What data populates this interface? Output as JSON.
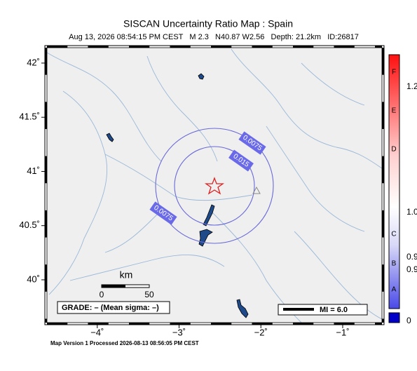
{
  "map": {
    "title": "SISCAN Uncertainty Ratio Map : Spain",
    "subtitle": "Aug 13, 2026 08:54:15 PM CEST   M 2.3   N40.87 W2.56   Depth: 21.2km   ID:26817",
    "xlim": [
      -4.615,
      -0.52
    ],
    "ylim": [
      39.605,
      42.142
    ],
    "xticks": [
      {
        "value": -4,
        "label": "−4˚"
      },
      {
        "value": -3,
        "label": "−3˚"
      },
      {
        "value": -2,
        "label": "−2˚"
      },
      {
        "value": -1,
        "label": "−1˚"
      }
    ],
    "yticks": [
      {
        "value": 42,
        "label": "42˚"
      },
      {
        "value": 41.5,
        "label": "41.5˚"
      },
      {
        "value": 41,
        "label": "41˚"
      },
      {
        "value": 40.5,
        "label": "40.5˚"
      },
      {
        "value": 40,
        "label": "40˚"
      }
    ],
    "contour_labels": [
      "0.0075",
      "0.015",
      "0.0075"
    ],
    "scale_bar": {
      "unit": "km",
      "start": "0",
      "end": "50"
    },
    "grade": "GRADE: – (Mean sigma: –)",
    "mi_legend": "MI = 6.0",
    "footer": "Map Version 1 Processed 2026-08-13 08:56:05 PM CEST"
  },
  "colorbar": {
    "letters": [
      "F",
      "E",
      "D",
      "C",
      "B",
      "A"
    ],
    "numbers": [
      "1.2",
      "1.0",
      "0.9",
      "0.9",
      "0"
    ]
  }
}
